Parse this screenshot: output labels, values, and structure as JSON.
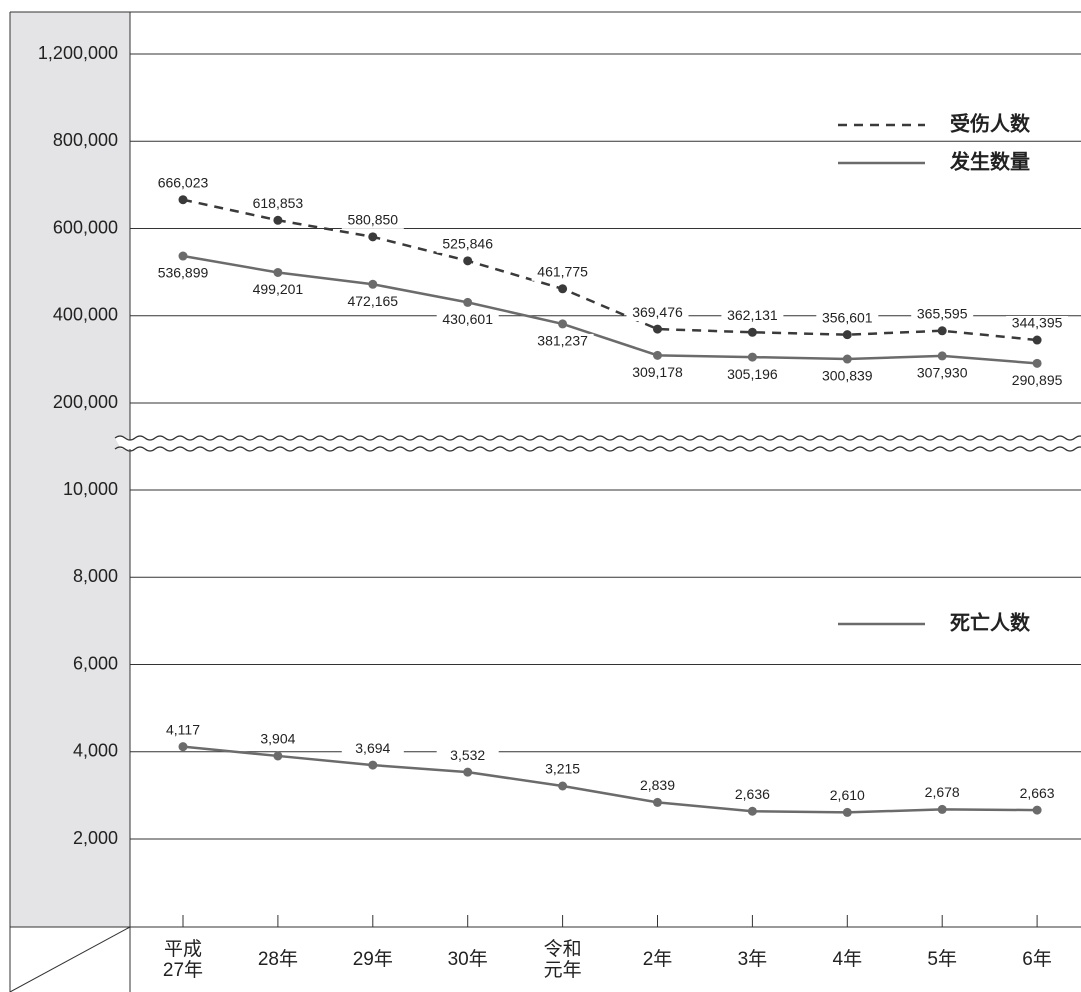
{
  "chart_data": [
    {
      "type": "line",
      "ylim": [
        115000,
        1400000
      ],
      "yticks": [
        {
          "value": 200000,
          "label": "200,000"
        },
        {
          "value": 400000,
          "label": "400,000"
        },
        {
          "value": 600000,
          "label": "600,000"
        },
        {
          "value": 800000,
          "label": "800,000"
        },
        {
          "value": 1200000,
          "label": "1,200,000"
        }
      ],
      "grid": true,
      "legend": "upper right",
      "series": [
        {
          "name": "受伤人数",
          "color": "#3a3a3a",
          "line_style": "dashed",
          "values": [
            666023,
            618853,
            580850,
            525846,
            461775,
            369476,
            362131,
            356601,
            365595,
            344395
          ],
          "value_labels": [
            "666,023",
            "618,853",
            "580,850",
            "525,846",
            "461,775",
            "369,476",
            "362,131",
            "356,601",
            "365,595",
            "344,395"
          ]
        },
        {
          "name": "发生数量",
          "color": "#6b6b6b",
          "line_style": "solid",
          "values": [
            536899,
            499201,
            472165,
            430601,
            381237,
            309178,
            305196,
            300839,
            307930,
            290895
          ],
          "value_labels": [
            "536,899",
            "499,201",
            "472,165",
            "430,601",
            "381,237",
            "309,178",
            "305,196",
            "300,839",
            "307,930",
            "290,895"
          ]
        }
      ]
    },
    {
      "type": "line",
      "categories": [
        "平成\n27年",
        "28年",
        "29年",
        "30年",
        "令和\n元年",
        "2年",
        "3年",
        "4年",
        "5年",
        "6年"
      ],
      "ylim": [
        0,
        11000
      ],
      "yticks": [
        {
          "value": 2000,
          "label": "2,000"
        },
        {
          "value": 4000,
          "label": "4,000"
        },
        {
          "value": 6000,
          "label": "6,000"
        },
        {
          "value": 8000,
          "label": "8,000"
        },
        {
          "value": 10000,
          "label": "10,000"
        }
      ],
      "grid": true,
      "legend": "upper right",
      "series": [
        {
          "name": "死亡人数",
          "color": "#6b6b6b",
          "line_style": "solid",
          "values": [
            4117,
            3904,
            3694,
            3532,
            3215,
            2839,
            2636,
            2610,
            2678,
            2663
          ],
          "value_labels": [
            "4,117",
            "3,904",
            "3,694",
            "3,532",
            "3,215",
            "2,839",
            "2,636",
            "2,610",
            "2,678",
            "2,663"
          ]
        }
      ]
    }
  ]
}
